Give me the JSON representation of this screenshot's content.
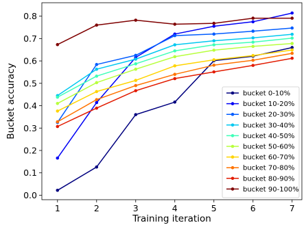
{
  "chart_data": {
    "type": "line",
    "title": "",
    "xlabel": "Training iteration",
    "ylabel": "Bucket accuracy",
    "x": [
      1,
      2,
      3,
      4,
      5,
      6,
      7
    ],
    "xlim": [
      0.6,
      7.25
    ],
    "ylim": [
      -0.02,
      0.86
    ],
    "xticks": [
      1,
      2,
      3,
      4,
      5,
      6,
      7
    ],
    "yticks": [
      0.0,
      0.1,
      0.2,
      0.3,
      0.4,
      0.5,
      0.6,
      0.7,
      0.8
    ],
    "ytick_labels": [
      "0.0",
      "0.1",
      "0.2",
      "0.3",
      "0.4",
      "0.5",
      "0.6",
      "0.7",
      "0.8"
    ],
    "grid": false,
    "legend_position": "lower-right",
    "series": [
      {
        "name": "bucket 0-10%",
        "color": "#00007f",
        "values": [
          0.022,
          0.126,
          0.36,
          0.416,
          0.601,
          0.621,
          0.66
        ]
      },
      {
        "name": "bucket 10-20%",
        "color": "#0000f5",
        "values": [
          0.166,
          0.414,
          0.616,
          0.72,
          0.755,
          0.775,
          0.814
        ]
      },
      {
        "name": "bucket 20-30%",
        "color": "#005cff",
        "values": [
          0.325,
          0.584,
          0.625,
          0.713,
          0.72,
          0.733,
          0.747
        ]
      },
      {
        "name": "bucket 30-40%",
        "color": "#00c8f0",
        "values": [
          0.445,
          0.563,
          0.608,
          0.672,
          0.69,
          0.703,
          0.719
        ]
      },
      {
        "name": "bucket 40-50%",
        "color": "#3effb8",
        "values": [
          0.438,
          0.532,
          0.587,
          0.645,
          0.672,
          0.684,
          0.702
        ]
      },
      {
        "name": "bucket 50-60%",
        "color": "#b8ff3e",
        "values": [
          0.41,
          0.503,
          0.563,
          0.619,
          0.648,
          0.665,
          0.678
        ]
      },
      {
        "name": "bucket 60-70%",
        "color": "#ffd400",
        "values": [
          0.376,
          0.463,
          0.513,
          0.578,
          0.605,
          0.624,
          0.649
        ]
      },
      {
        "name": "bucket 70-80%",
        "color": "#ff7300",
        "values": [
          0.328,
          0.427,
          0.49,
          0.54,
          0.581,
          0.603,
          0.634
        ]
      },
      {
        "name": "bucket 80-90%",
        "color": "#e21b00",
        "values": [
          0.307,
          0.389,
          0.467,
          0.521,
          0.551,
          0.58,
          0.612
        ]
      },
      {
        "name": "bucket 90-100%",
        "color": "#7f0000",
        "values": [
          0.673,
          0.76,
          0.782,
          0.764,
          0.768,
          0.791,
          0.791
        ]
      }
    ]
  }
}
